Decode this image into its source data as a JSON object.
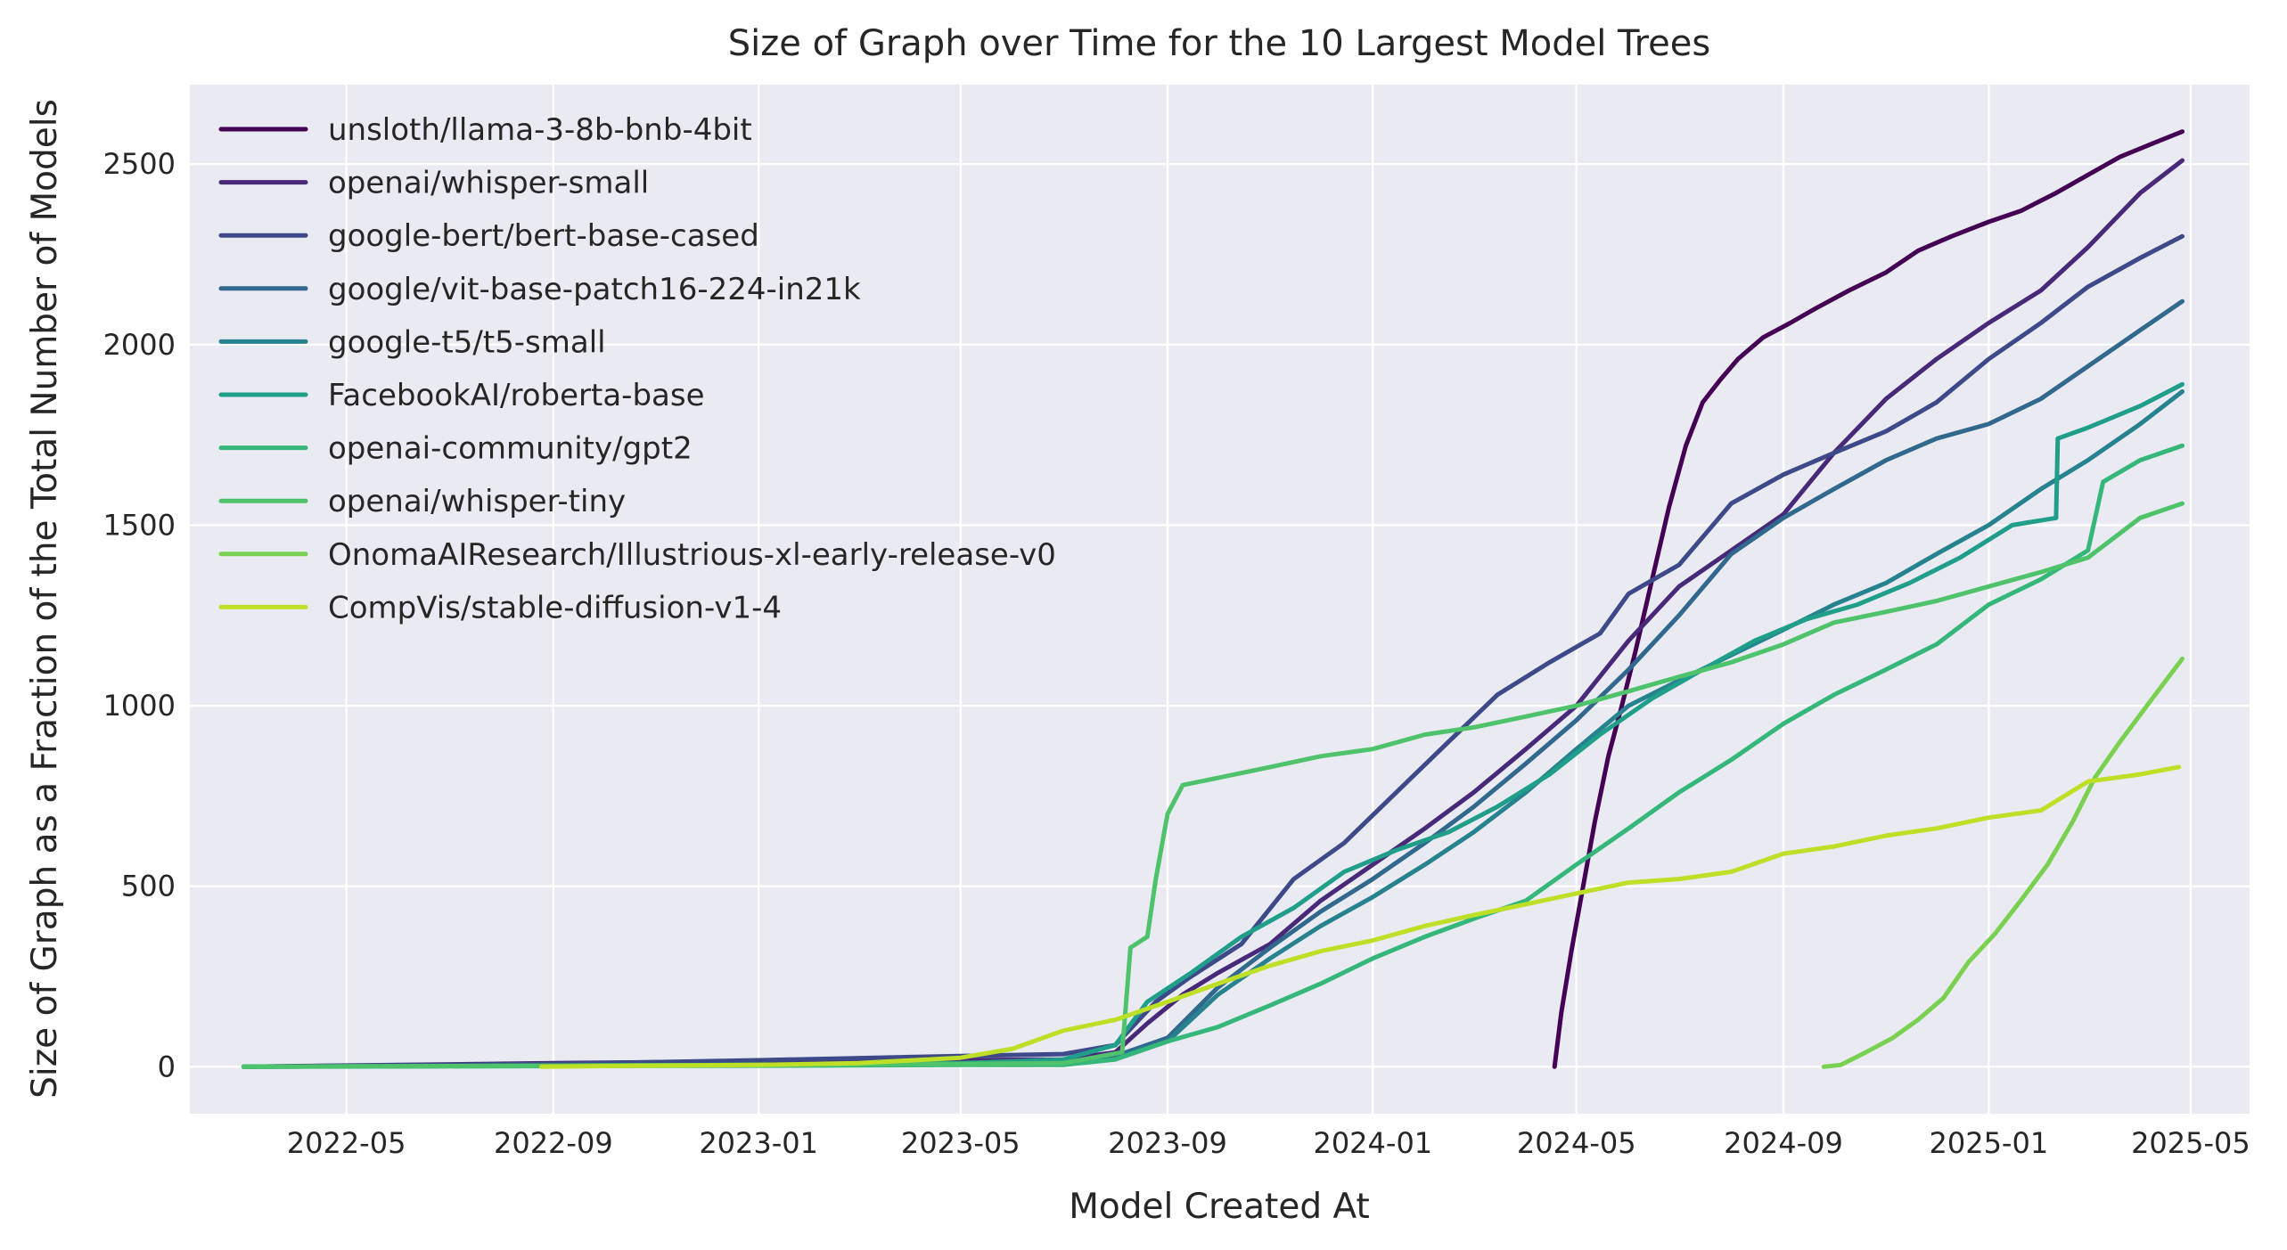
{
  "chart_data": {
    "type": "line",
    "title": "Size of Graph over Time for the 10 Largest Model Trees",
    "xlabel": "Model Created At",
    "ylabel": "Size of Graph as a Fraction of the Total Number of Models",
    "x_ticks": [
      "2022-05",
      "2022-09",
      "2023-01",
      "2023-05",
      "2023-09",
      "2024-01",
      "2024-05",
      "2024-09",
      "2025-01",
      "2025-05"
    ],
    "y_ticks": [
      0,
      500,
      1000,
      1500,
      2000,
      2500
    ],
    "xlim": [
      "2022-01-28",
      "2025-06-05"
    ],
    "ylim": [
      -130,
      2720
    ],
    "grid": true,
    "background": "#eaeaf2",
    "legend_position": "top-left",
    "series": [
      {
        "name": "unsloth/llama-3-8b-bnb-4bit",
        "color": "#440154",
        "x": [
          "2024-04-18",
          "2024-04-22",
          "2024-04-28",
          "2024-05-05",
          "2024-05-12",
          "2024-05-20",
          "2024-05-28",
          "2024-06-05",
          "2024-06-15",
          "2024-06-25",
          "2024-07-05",
          "2024-07-15",
          "2024-07-25",
          "2024-08-05",
          "2024-08-20",
          "2024-09-05",
          "2024-09-20",
          "2024-10-10",
          "2024-11-01",
          "2024-11-20",
          "2024-12-10",
          "2025-01-01",
          "2025-01-20",
          "2025-02-10",
          "2025-03-01",
          "2025-03-20",
          "2025-04-10",
          "2025-04-26"
        ],
        "y": [
          0,
          150,
          320,
          500,
          680,
          860,
          1000,
          1150,
          1350,
          1550,
          1720,
          1840,
          1900,
          1960,
          2020,
          2060,
          2100,
          2150,
          2200,
          2260,
          2300,
          2340,
          2370,
          2420,
          2470,
          2520,
          2560,
          2590
        ]
      },
      {
        "name": "openai/whisper-small",
        "color": "#482878",
        "x": [
          "2022-03-01",
          "2022-09-01",
          "2023-01-01",
          "2023-05-01",
          "2023-07-01",
          "2023-08-01",
          "2023-08-20",
          "2023-09-10",
          "2023-10-01",
          "2023-11-01",
          "2023-12-01",
          "2024-01-01",
          "2024-02-01",
          "2024-03-01",
          "2024-04-01",
          "2024-05-01",
          "2024-06-01",
          "2024-07-01",
          "2024-08-01",
          "2024-09-01",
          "2024-10-01",
          "2024-11-01",
          "2024-12-01",
          "2025-01-01",
          "2025-02-01",
          "2025-03-01",
          "2025-04-01",
          "2025-04-26"
        ],
        "y": [
          0,
          10,
          15,
          18,
          20,
          40,
          120,
          200,
          260,
          340,
          460,
          560,
          660,
          760,
          880,
          1000,
          1180,
          1330,
          1430,
          1530,
          1700,
          1850,
          1960,
          2060,
          2150,
          2270,
          2420,
          2510
        ]
      },
      {
        "name": "google-bert/bert-base-cased",
        "color": "#3e4989",
        "x": [
          "2022-03-01",
          "2022-09-01",
          "2023-01-01",
          "2023-05-01",
          "2023-07-01",
          "2023-08-01",
          "2023-08-25",
          "2023-09-15",
          "2023-10-15",
          "2023-11-15",
          "2023-12-15",
          "2024-01-15",
          "2024-02-15",
          "2024-03-15",
          "2024-04-15",
          "2024-05-15",
          "2024-06-01",
          "2024-07-01",
          "2024-08-01",
          "2024-09-01",
          "2024-10-01",
          "2024-11-01",
          "2024-12-01",
          "2025-01-01",
          "2025-02-01",
          "2025-03-01",
          "2025-04-01",
          "2025-04-26"
        ],
        "y": [
          0,
          8,
          18,
          30,
          35,
          60,
          180,
          250,
          340,
          520,
          620,
          760,
          900,
          1030,
          1120,
          1200,
          1310,
          1390,
          1560,
          1640,
          1700,
          1760,
          1840,
          1960,
          2060,
          2160,
          2240,
          2300
        ]
      },
      {
        "name": "google/vit-base-patch16-224-in21k",
        "color": "#31688e",
        "x": [
          "2022-03-01",
          "2023-01-01",
          "2023-05-01",
          "2023-07-01",
          "2023-08-01",
          "2023-09-01",
          "2023-10-01",
          "2023-11-01",
          "2023-12-01",
          "2024-01-01",
          "2024-02-01",
          "2024-03-01",
          "2024-04-01",
          "2024-05-01",
          "2024-06-01",
          "2024-07-01",
          "2024-08-01",
          "2024-09-01",
          "2024-10-01",
          "2024-11-01",
          "2024-12-01",
          "2025-01-01",
          "2025-02-01",
          "2025-03-01",
          "2025-04-01",
          "2025-04-26"
        ],
        "y": [
          0,
          5,
          8,
          10,
          30,
          80,
          220,
          330,
          430,
          520,
          620,
          720,
          840,
          960,
          1100,
          1250,
          1420,
          1520,
          1600,
          1680,
          1740,
          1780,
          1850,
          1940,
          2040,
          2120
        ]
      },
      {
        "name": "google-t5/t5-small",
        "color": "#26828e",
        "x": [
          "2022-03-01",
          "2023-01-01",
          "2023-05-01",
          "2023-07-01",
          "2023-08-01",
          "2023-09-01",
          "2023-10-01",
          "2023-11-01",
          "2023-12-01",
          "2024-01-01",
          "2024-02-01",
          "2024-03-01",
          "2024-04-01",
          "2024-05-01",
          "2024-06-01",
          "2024-07-01",
          "2024-08-01",
          "2024-09-01",
          "2024-10-01",
          "2024-11-01",
          "2024-12-01",
          "2025-01-01",
          "2025-02-01",
          "2025-03-01",
          "2025-04-01",
          "2025-04-26"
        ],
        "y": [
          0,
          5,
          8,
          10,
          25,
          70,
          200,
          300,
          390,
          470,
          560,
          650,
          760,
          880,
          1000,
          1070,
          1140,
          1210,
          1280,
          1340,
          1420,
          1500,
          1600,
          1680,
          1780,
          1870
        ]
      },
      {
        "name": "FacebookAI/roberta-base",
        "color": "#1f9e89",
        "x": [
          "2022-03-01",
          "2023-01-01",
          "2023-05-01",
          "2023-07-01",
          "2023-08-01",
          "2023-08-20",
          "2023-09-15",
          "2023-10-15",
          "2023-11-15",
          "2023-12-15",
          "2024-01-15",
          "2024-02-15",
          "2024-03-15",
          "2024-04-15",
          "2024-05-15",
          "2024-06-15",
          "2024-07-15",
          "2024-08-15",
          "2024-09-15",
          "2024-10-15",
          "2024-11-15",
          "2024-12-15",
          "2025-01-15",
          "2025-02-10",
          "2025-02-11",
          "2025-03-01",
          "2025-04-01",
          "2025-04-26"
        ],
        "y": [
          0,
          5,
          10,
          20,
          60,
          180,
          260,
          360,
          440,
          540,
          600,
          650,
          720,
          810,
          920,
          1020,
          1100,
          1180,
          1240,
          1280,
          1340,
          1410,
          1500,
          1520,
          1740,
          1770,
          1830,
          1890
        ]
      },
      {
        "name": "openai-community/gpt2",
        "color": "#35b779",
        "x": [
          "2022-03-01",
          "2023-01-01",
          "2023-05-01",
          "2023-07-01",
          "2023-08-01",
          "2023-09-01",
          "2023-10-01",
          "2023-11-01",
          "2023-12-01",
          "2024-01-01",
          "2024-02-01",
          "2024-03-01",
          "2024-04-01",
          "2024-05-01",
          "2024-06-01",
          "2024-07-01",
          "2024-08-01",
          "2024-09-01",
          "2024-10-01",
          "2024-11-01",
          "2024-12-01",
          "2025-01-01",
          "2025-02-01",
          "2025-03-01",
          "2025-03-10",
          "2025-04-01",
          "2025-04-26"
        ],
        "y": [
          0,
          3,
          5,
          5,
          20,
          70,
          110,
          170,
          230,
          300,
          360,
          410,
          460,
          560,
          660,
          760,
          850,
          950,
          1030,
          1100,
          1170,
          1280,
          1350,
          1430,
          1620,
          1680,
          1720
        ]
      },
      {
        "name": "openai/whisper-tiny",
        "color": "#4ec36b",
        "x": [
          "2022-03-01",
          "2023-01-01",
          "2023-05-01",
          "2023-07-01",
          "2023-08-05",
          "2023-08-10",
          "2023-08-20",
          "2023-08-25",
          "2023-09-01",
          "2023-09-10",
          "2023-10-01",
          "2023-11-01",
          "2023-12-01",
          "2024-01-01",
          "2024-02-01",
          "2024-03-01",
          "2024-04-01",
          "2024-05-01",
          "2024-06-01",
          "2024-07-01",
          "2024-08-01",
          "2024-09-01",
          "2024-10-01",
          "2024-11-01",
          "2024-12-01",
          "2025-01-01",
          "2025-02-01",
          "2025-03-01",
          "2025-04-01",
          "2025-04-26"
        ],
        "y": [
          0,
          5,
          8,
          10,
          40,
          330,
          360,
          520,
          700,
          780,
          800,
          830,
          860,
          880,
          920,
          940,
          970,
          1000,
          1040,
          1080,
          1120,
          1170,
          1230,
          1260,
          1290,
          1330,
          1370,
          1410,
          1520,
          1560
        ]
      },
      {
        "name": "OnomaAIResearch/Illustrious-xl-early-release-v0",
        "color": "#7ad151",
        "x": [
          "2024-09-25",
          "2024-10-05",
          "2024-10-20",
          "2024-11-05",
          "2024-11-20",
          "2024-12-05",
          "2024-12-20",
          "2025-01-05",
          "2025-01-20",
          "2025-02-05",
          "2025-02-20",
          "2025-03-05",
          "2025-03-20",
          "2025-04-05",
          "2025-04-26"
        ],
        "y": [
          0,
          5,
          40,
          80,
          130,
          190,
          290,
          370,
          460,
          560,
          680,
          800,
          900,
          1000,
          1130
        ]
      },
      {
        "name": "CompVis/stable-diffusion-v1-4",
        "color": "#bddf26",
        "x": [
          "2022-08-25",
          "2022-10-01",
          "2023-01-01",
          "2023-03-01",
          "2023-05-01",
          "2023-06-01",
          "2023-07-01",
          "2023-08-01",
          "2023-09-01",
          "2023-10-01",
          "2023-11-01",
          "2023-12-01",
          "2024-01-01",
          "2024-02-01",
          "2024-03-01",
          "2024-04-01",
          "2024-05-01",
          "2024-06-01",
          "2024-07-01",
          "2024-08-01",
          "2024-09-01",
          "2024-10-01",
          "2024-11-01",
          "2024-12-01",
          "2025-01-01",
          "2025-02-01",
          "2025-03-01",
          "2025-04-01",
          "2025-04-24"
        ],
        "y": [
          0,
          2,
          5,
          10,
          25,
          50,
          100,
          130,
          180,
          230,
          280,
          320,
          350,
          390,
          420,
          450,
          480,
          510,
          520,
          540,
          590,
          610,
          640,
          660,
          690,
          710,
          790,
          810,
          830
        ]
      }
    ]
  }
}
